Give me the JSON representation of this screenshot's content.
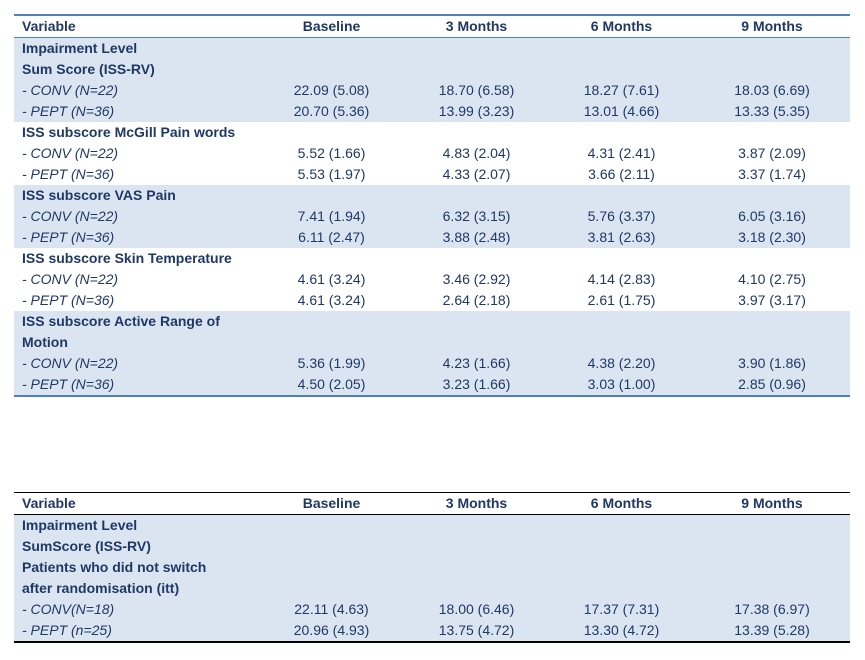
{
  "table1": {
    "headers": [
      "Variable",
      "Baseline",
      "3 Months",
      "6 Months",
      "9 Months"
    ],
    "groups": [
      {
        "title_lines": [
          "Impairment Level",
          "Sum Score (ISS-RV)"
        ],
        "rows": [
          {
            "label": "- CONV (N=22)",
            "values": [
              "22.09 (5.08)",
              "18.70 (6.58)",
              "18.27 (7.61)",
              "18.03 (6.69)"
            ]
          },
          {
            "label": "- PEPT (N=36)",
            "values": [
              "20.70 (5.36)",
              "13.99 (3.23)",
              "13.01 (4.66)",
              "13.33 (5.35)"
            ]
          }
        ]
      },
      {
        "title_lines": [
          "ISS  subscore McGill Pain words"
        ],
        "rows": [
          {
            "label": "- CONV (N=22)",
            "values": [
              "5.52 (1.66)",
              "4.83 (2.04)",
              "4.31 (2.41)",
              "3.87 (2.09)"
            ]
          },
          {
            "label": "- PEPT (N=36)",
            "values": [
              "5.53 (1.97)",
              "4.33 (2.07)",
              "3.66 (2.11)",
              "3.37 (1.74)"
            ]
          }
        ]
      },
      {
        "title_lines": [
          "ISS  subscore VAS Pain"
        ],
        "rows": [
          {
            "label": "- CONV (N=22)",
            "values": [
              "7.41 (1.94)",
              "6.32 (3.15)",
              "5.76 (3.37)",
              "6.05 (3.16)"
            ]
          },
          {
            "label": "- PEPT (N=36)",
            "values": [
              "6.11 (2.47)",
              "3.88 (2.48)",
              "3.81 (2.63)",
              "3.18 (2.30)"
            ]
          }
        ]
      },
      {
        "title_lines": [
          "ISS  subscore Skin Temperature"
        ],
        "rows": [
          {
            "label": "- CONV (N=22)",
            "values": [
              "4.61 (3.24)",
              "3.46 (2.92)",
              "4.14 (2.83)",
              "4.10 (2.75)"
            ]
          },
          {
            "label": "- PEPT (N=36)",
            "values": [
              "4.61 (3.24)",
              "2.64 (2.18)",
              "2.61 (1.75)",
              "3.97 (3.17)"
            ]
          }
        ]
      },
      {
        "title_lines": [
          "ISS  subscore Active Range of",
          "Motion"
        ],
        "rows": [
          {
            "label": "- CONV (N=22)",
            "values": [
              "5.36 (1.99)",
              "4.23 (1.66)",
              "4.38 (2.20)",
              "3.90 (1.86)"
            ]
          },
          {
            "label": "- PEPT (N=36)",
            "values": [
              "4.50 (2.05)",
              "3.23 (1.66)",
              "3.03 (1.00)",
              "2.85 (0.96)"
            ]
          }
        ]
      }
    ]
  },
  "table2": {
    "headers": [
      "Variable",
      "Baseline",
      "3 Months",
      "6 Months",
      "9 Months"
    ],
    "groups": [
      {
        "title_lines": [
          "Impairment Level",
          "SumScore (ISS-RV)",
          "Patients who did not switch",
          "after randomisation (itt)"
        ],
        "rows": [
          {
            "label": "- CONV(N=18)",
            "values": [
              "22.11 (4.63)",
              "18.00 (6.46)",
              "17.37 (7.31)",
              "17.38 (6.97)"
            ]
          },
          {
            "label": "- PEPT (n=25)",
            "values": [
              "20.96 (4.93)",
              "13.75 (4.72)",
              "13.30 (4.72)",
              "13.39 (5.28)"
            ]
          }
        ]
      }
    ]
  },
  "colors": {
    "text": "#1f3864",
    "shade": "#dbe5f1",
    "rule_blue": "#4f81bd",
    "rule_black": "#000000"
  }
}
